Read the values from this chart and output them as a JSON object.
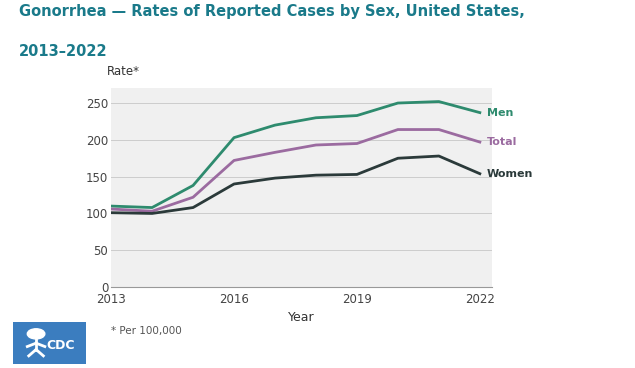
{
  "title_line1": "Gonorrhea — Rates of Reported Cases by Sex, United States,",
  "title_line2": "2013–2022",
  "title_color": "#1a7a8a",
  "xlabel": "Year",
  "ylabel": "Rate*",
  "footnote": "* Per 100,000",
  "years": [
    2013,
    2014,
    2015,
    2016,
    2017,
    2018,
    2019,
    2020,
    2021,
    2022
  ],
  "men": [
    110,
    108,
    138,
    203,
    220,
    230,
    233,
    250,
    252,
    237
  ],
  "total": [
    106,
    103,
    122,
    172,
    183,
    193,
    195,
    214,
    214,
    197
  ],
  "women": [
    101,
    100,
    108,
    140,
    148,
    152,
    153,
    175,
    178,
    154
  ],
  "men_color": "#2e8b6e",
  "total_color": "#9b6ba0",
  "women_color": "#2b3a3a",
  "bg_color": "#f0f0f0",
  "ylim": [
    0,
    270
  ],
  "yticks": [
    0,
    50,
    100,
    150,
    200,
    250
  ],
  "xticks": [
    2013,
    2016,
    2019,
    2022
  ],
  "linewidth": 2.0
}
